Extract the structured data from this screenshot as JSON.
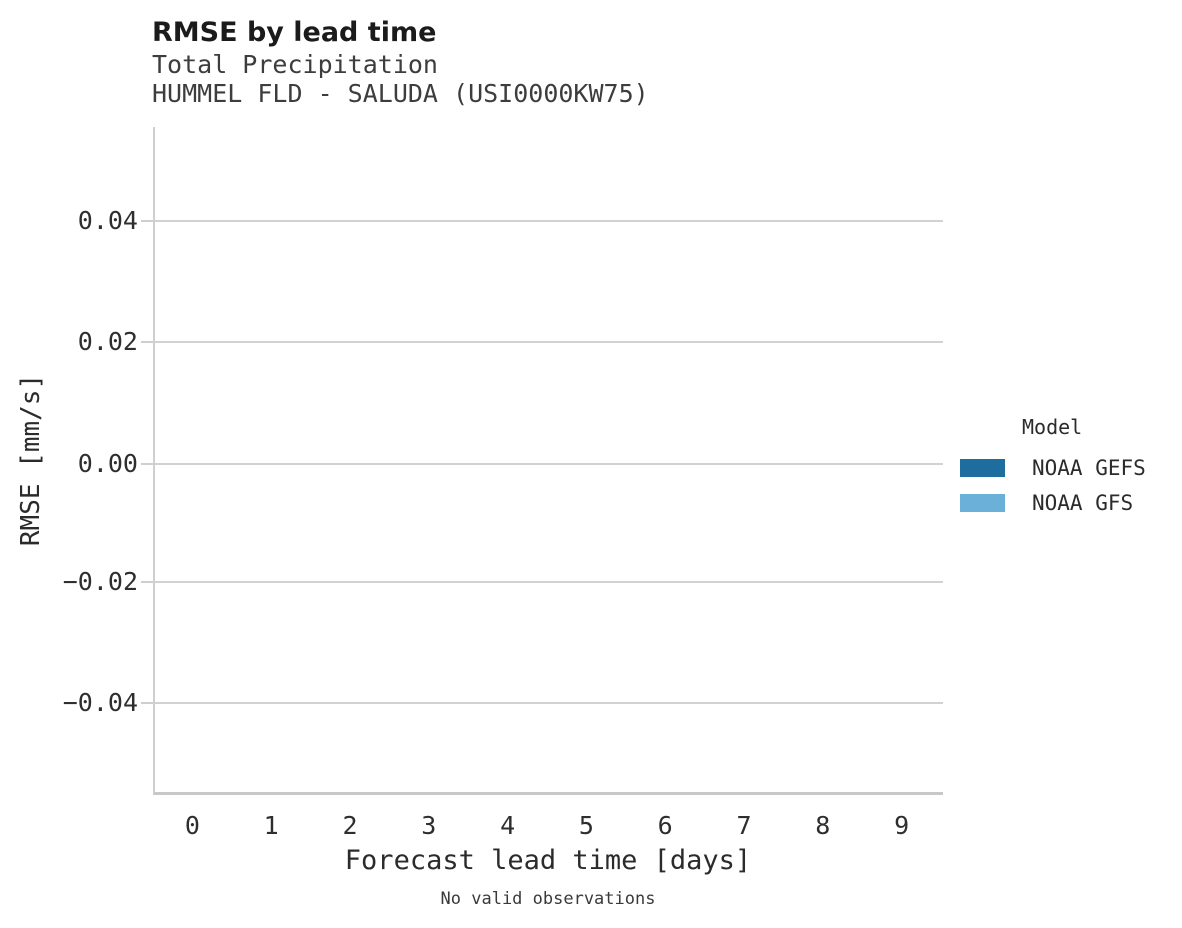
{
  "header": {
    "title": "RMSE by lead time",
    "subtitle1": "Total Precipitation",
    "subtitle2": "HUMMEL FLD - SALUDA (USI0000KW75)"
  },
  "chart_data": {
    "type": "line",
    "title": "RMSE by lead time",
    "subtitle": [
      "Total Precipitation",
      "HUMMEL FLD - SALUDA (USI0000KW75)"
    ],
    "xlabel": "Forecast lead time [days]",
    "ylabel": "RMSE [mm/s]",
    "x_ticks": [
      "0",
      "1",
      "2",
      "3",
      "4",
      "5",
      "6",
      "7",
      "8",
      "9"
    ],
    "y_ticks": [
      "0.04",
      "0.02",
      "0.00",
      "−0.02",
      "−0.04"
    ],
    "y_tick_values": [
      0.04,
      0.02,
      0.0,
      -0.02,
      -0.04
    ],
    "xlim": [
      0,
      9
    ],
    "ylim": [
      -0.055,
      0.055
    ],
    "grid": "horizontal-only",
    "legend_position": "right",
    "legend_title": "Model",
    "series": [
      {
        "name": "NOAA GEFS",
        "color": "#1d6d9e",
        "x": [],
        "values": []
      },
      {
        "name": "NOAA GFS",
        "color": "#6bb0d8",
        "x": [],
        "values": []
      }
    ],
    "annotations": [
      "No valid observations"
    ]
  },
  "legend": {
    "title": "Model"
  },
  "caption": "No valid observations",
  "colors": {
    "background": "#ffffff",
    "gridline": "#d2d2d2",
    "axis_line": "#cfcfcf",
    "bottom_axis_line": "#c8c8c8",
    "title_text": "#1b1b1b",
    "subtitle_text": "#3d3d3d",
    "tick_text": "#2e2e2e",
    "series_noaa_gefs": "#1d6d9e",
    "series_noaa_gfs": "#6bb0d8"
  }
}
